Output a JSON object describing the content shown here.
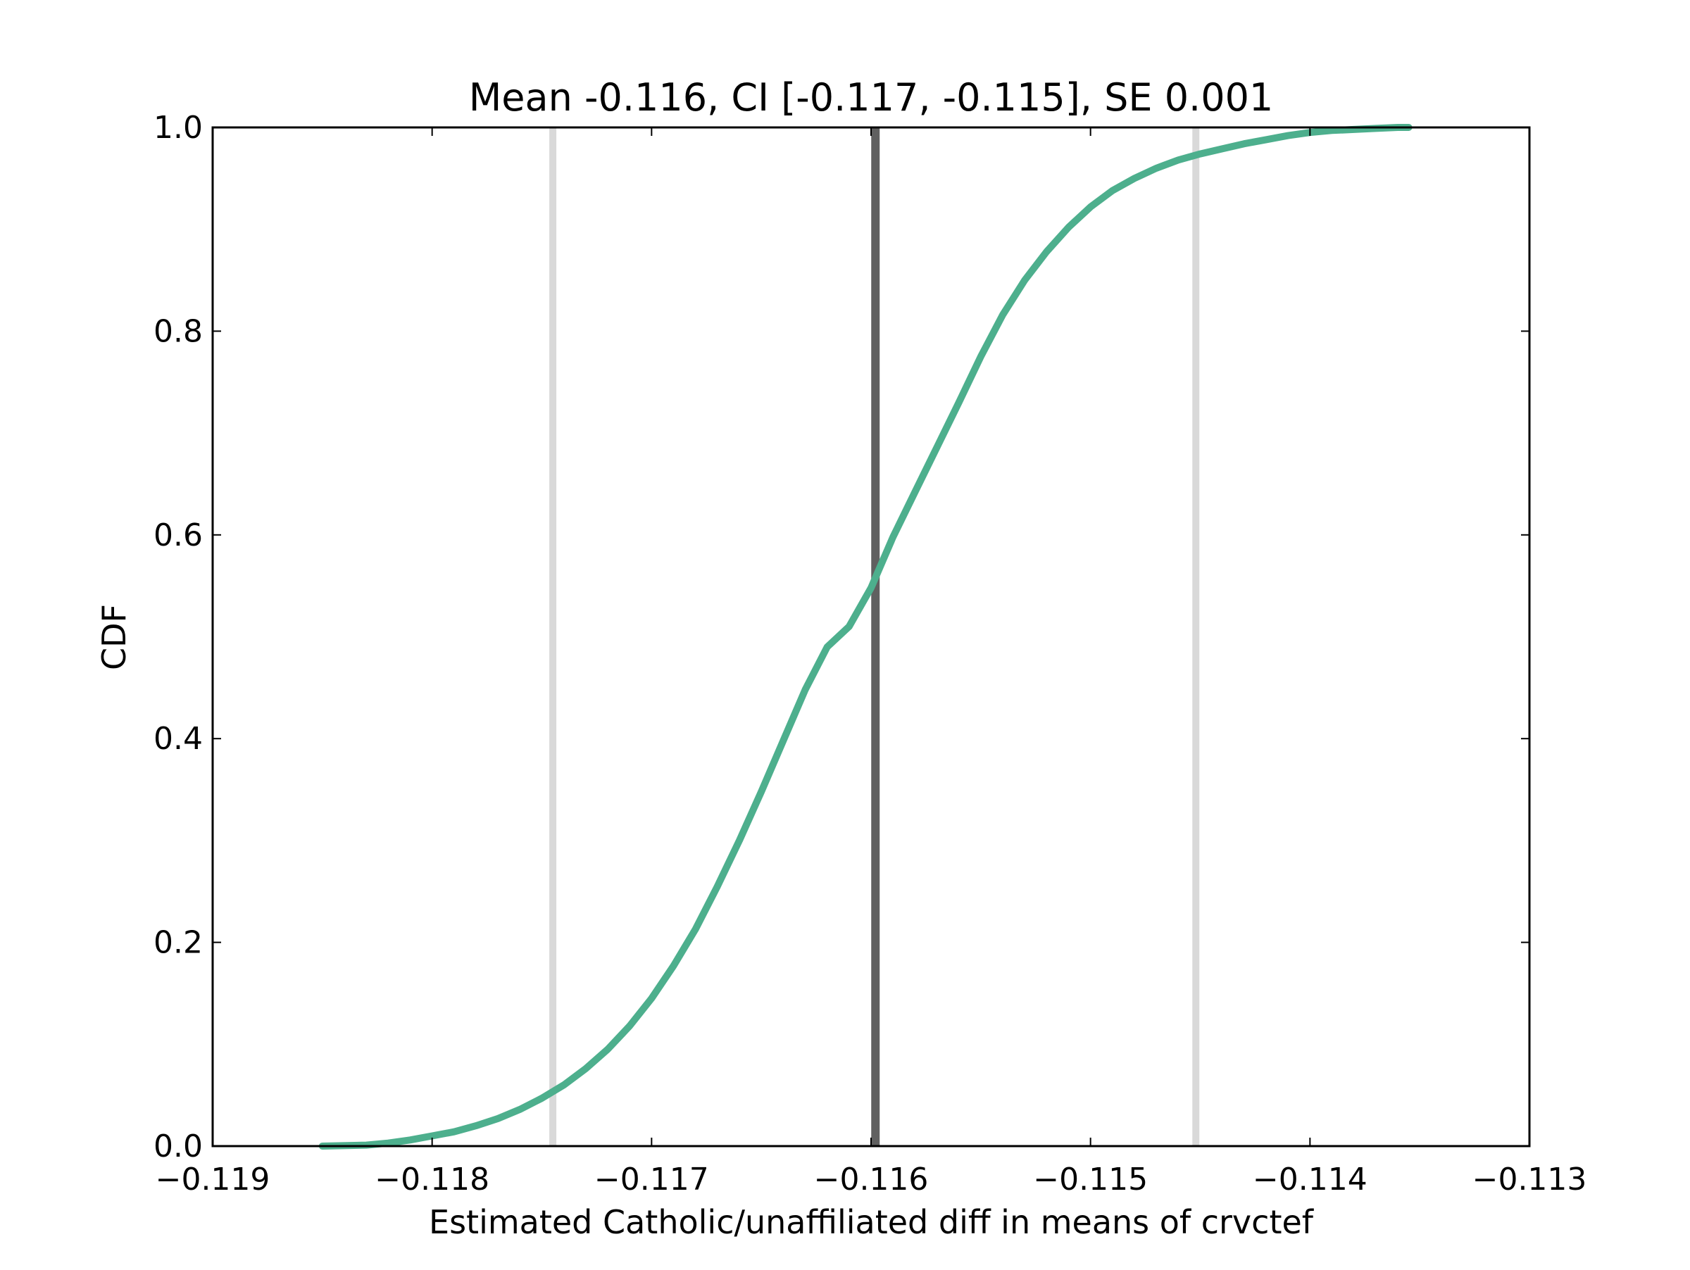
{
  "chart_data": {
    "type": "line",
    "title": "Mean -0.116, CI [-0.117, -0.115], SE 0.001",
    "xlabel": "Estimated Catholic/unaffiliated diff in means of crvctef",
    "ylabel": "CDF",
    "xlim": [
      -0.119,
      -0.113
    ],
    "ylim": [
      0.0,
      1.0
    ],
    "x_ticks": [
      -0.119,
      -0.118,
      -0.117,
      -0.116,
      -0.115,
      -0.114,
      -0.113
    ],
    "x_tick_labels": [
      "−0.119",
      "−0.118",
      "−0.117",
      "−0.116",
      "−0.115",
      "−0.114",
      "−0.113"
    ],
    "y_ticks": [
      0.0,
      0.2,
      0.4,
      0.6,
      0.8,
      1.0
    ],
    "y_tick_labels": [
      "0.0",
      "0.2",
      "0.4",
      "0.6",
      "0.8",
      "1.0"
    ],
    "grid": false,
    "series": [
      {
        "color": "#4daf8d",
        "x": [
          -0.1185,
          -0.1183,
          -0.1182,
          -0.1181,
          -0.118,
          -0.1179,
          -0.1178,
          -0.1177,
          -0.1176,
          -0.1175,
          -0.1174,
          -0.1173,
          -0.1172,
          -0.1171,
          -0.117,
          -0.1169,
          -0.1168,
          -0.1167,
          -0.1166,
          -0.1165,
          -0.1164,
          -0.1163,
          -0.1162,
          -0.1161,
          -0.116,
          -0.1159,
          -0.1158,
          -0.1157,
          -0.1156,
          -0.1155,
          -0.1154,
          -0.1153,
          -0.1152,
          -0.1151,
          -0.115,
          -0.1149,
          -0.1148,
          -0.1147,
          -0.1146,
          -0.1145,
          -0.1144,
          -0.1143,
          -0.1142,
          -0.1141,
          -0.114,
          -0.1139,
          -0.1138,
          -0.1137,
          -0.1136,
          -0.11355
        ],
        "values": [
          0.0,
          0.001,
          0.003,
          0.006,
          0.01,
          0.014,
          0.02,
          0.027,
          0.036,
          0.047,
          0.06,
          0.076,
          0.095,
          0.118,
          0.145,
          0.177,
          0.213,
          0.255,
          0.3,
          0.348,
          0.398,
          0.448,
          0.49,
          0.51,
          0.548,
          0.598,
          0.642,
          0.686,
          0.73,
          0.775,
          0.816,
          0.85,
          0.878,
          0.902,
          0.922,
          0.938,
          0.95,
          0.96,
          0.968,
          0.974,
          0.979,
          0.984,
          0.988,
          0.992,
          0.995,
          0.997,
          0.998,
          0.999,
          1.0,
          1.0
        ]
      }
    ],
    "vlines": [
      {
        "x": -0.11745,
        "color": "#d9d9d9",
        "role": "CI lower"
      },
      {
        "x": -0.11598,
        "color": "#606060",
        "role": "mean"
      },
      {
        "x": -0.11452,
        "color": "#d9d9d9",
        "role": "CI upper"
      }
    ]
  }
}
